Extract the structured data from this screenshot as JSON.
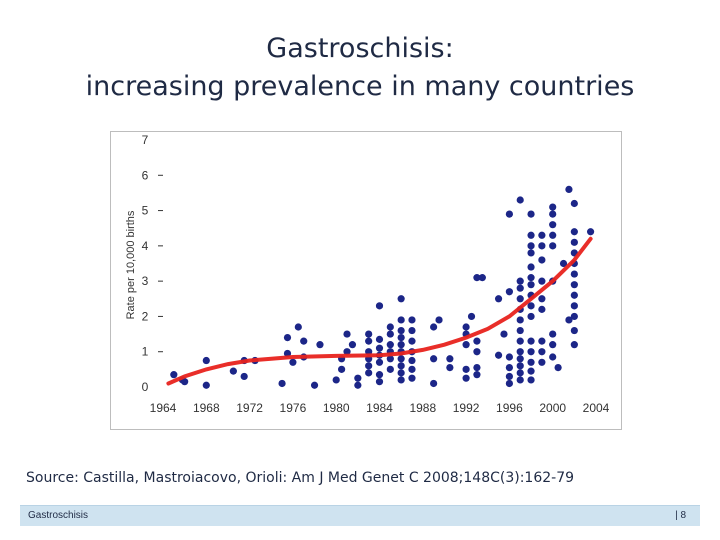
{
  "slide": {
    "title_line1": "Gastroschisis:",
    "title_line2": "increasing prevalence in many countries",
    "source": "Source: Castilla, Mastroiacovo, Orioli: Am J Med Genet C 2008;148C(3):162-79",
    "footer_left": "Gastroschisis",
    "footer_right": "| 8"
  },
  "colors": {
    "points": "#1c2688",
    "trend": "#e8231e",
    "axis_text": "#333333"
  },
  "chart_data": {
    "type": "scatter",
    "title": "",
    "xlabel": "",
    "ylabel": "Rate per 10,000 births",
    "xlim": [
      1964,
      2004
    ],
    "ylim": [
      0,
      7
    ],
    "x_ticks": [
      "1964",
      "1968",
      "1972",
      "1976",
      "1980",
      "1984",
      "1988",
      "1992",
      "1996",
      "2000",
      "2004"
    ],
    "y_ticks": [
      "0",
      "1",
      "2",
      "3",
      "4",
      "5",
      "6",
      "7"
    ],
    "grid": false,
    "points": [
      [
        1965,
        0.35
      ],
      [
        1965.8,
        0.2
      ],
      [
        1966,
        0.15
      ],
      [
        1968,
        0.05
      ],
      [
        1968,
        0.75
      ],
      [
        1970.5,
        0.45
      ],
      [
        1971.5,
        0.3
      ],
      [
        1971.5,
        0.75
      ],
      [
        1972.5,
        0.75
      ],
      [
        1975,
        0.1
      ],
      [
        1975.5,
        0.95
      ],
      [
        1975.5,
        1.4
      ],
      [
        1976,
        0.7
      ],
      [
        1976.5,
        1.7
      ],
      [
        1977,
        0.85
      ],
      [
        1977,
        1.3
      ],
      [
        1978,
        0.05
      ],
      [
        1978.5,
        1.2
      ],
      [
        1980,
        0.2
      ],
      [
        1980.5,
        0.5
      ],
      [
        1980.5,
        0.8
      ],
      [
        1981,
        1.0
      ],
      [
        1981,
        1.5
      ],
      [
        1981.5,
        1.2
      ],
      [
        1982,
        0.05
      ],
      [
        1982,
        0.25
      ],
      [
        1983,
        0.4
      ],
      [
        1983,
        0.6
      ],
      [
        1983,
        0.8
      ],
      [
        1983,
        1.0
      ],
      [
        1983,
        1.3
      ],
      [
        1983,
        1.5
      ],
      [
        1984,
        0.15
      ],
      [
        1984,
        0.35
      ],
      [
        1984,
        0.7
      ],
      [
        1984,
        0.9
      ],
      [
        1984,
        1.1
      ],
      [
        1984,
        1.35
      ],
      [
        1984,
        2.3
      ],
      [
        1985,
        0.5
      ],
      [
        1985,
        0.8
      ],
      [
        1985,
        1.0
      ],
      [
        1985,
        1.2
      ],
      [
        1985,
        1.5
      ],
      [
        1985,
        1.7
      ],
      [
        1986,
        0.2
      ],
      [
        1986,
        0.4
      ],
      [
        1986,
        0.6
      ],
      [
        1986,
        0.8
      ],
      [
        1986,
        1.0
      ],
      [
        1986,
        1.2
      ],
      [
        1986,
        1.4
      ],
      [
        1986,
        1.6
      ],
      [
        1986,
        1.9
      ],
      [
        1986,
        2.5
      ],
      [
        1987,
        0.25
      ],
      [
        1987,
        0.5
      ],
      [
        1987,
        0.75
      ],
      [
        1987,
        1.0
      ],
      [
        1987,
        1.3
      ],
      [
        1987,
        1.6
      ],
      [
        1987,
        1.9
      ],
      [
        1989,
        0.1
      ],
      [
        1989,
        0.8
      ],
      [
        1989,
        1.7
      ],
      [
        1989.5,
        1.9
      ],
      [
        1990.5,
        0.55
      ],
      [
        1990.5,
        0.8
      ],
      [
        1992,
        0.25
      ],
      [
        1992,
        0.5
      ],
      [
        1992,
        1.2
      ],
      [
        1992,
        1.5
      ],
      [
        1992,
        1.7
      ],
      [
        1992.5,
        2.0
      ],
      [
        1993,
        0.35
      ],
      [
        1993,
        0.55
      ],
      [
        1993,
        1.0
      ],
      [
        1993,
        1.3
      ],
      [
        1993,
        3.1
      ],
      [
        1993.5,
        3.1
      ],
      [
        1995,
        0.9
      ],
      [
        1995,
        2.5
      ],
      [
        1995.5,
        1.5
      ],
      [
        1996,
        0.1
      ],
      [
        1996,
        0.3
      ],
      [
        1996,
        0.55
      ],
      [
        1996,
        0.85
      ],
      [
        1996,
        2.7
      ],
      [
        1996,
        4.9
      ],
      [
        1997,
        0.2
      ],
      [
        1997,
        0.4
      ],
      [
        1997,
        0.6
      ],
      [
        1997,
        0.8
      ],
      [
        1997,
        1.0
      ],
      [
        1997,
        1.3
      ],
      [
        1997,
        1.6
      ],
      [
        1997,
        1.9
      ],
      [
        1997,
        2.2
      ],
      [
        1997,
        2.5
      ],
      [
        1997,
        2.8
      ],
      [
        1997,
        3.0
      ],
      [
        1997,
        5.3
      ],
      [
        1998,
        0.2
      ],
      [
        1998,
        0.45
      ],
      [
        1998,
        0.7
      ],
      [
        1998,
        1.0
      ],
      [
        1998,
        1.3
      ],
      [
        1998,
        2.0
      ],
      [
        1998,
        2.3
      ],
      [
        1998,
        2.6
      ],
      [
        1998,
        2.9
      ],
      [
        1998,
        3.1
      ],
      [
        1998,
        3.4
      ],
      [
        1998,
        3.8
      ],
      [
        1998,
        4.0
      ],
      [
        1998,
        4.3
      ],
      [
        1998,
        4.9
      ],
      [
        1999,
        0.7
      ],
      [
        1999,
        1.0
      ],
      [
        1999,
        1.3
      ],
      [
        1999,
        2.2
      ],
      [
        1999,
        2.5
      ],
      [
        1999,
        3.0
      ],
      [
        1999,
        3.6
      ],
      [
        1999,
        4.0
      ],
      [
        1999,
        4.3
      ],
      [
        2000,
        0.85
      ],
      [
        2000,
        1.2
      ],
      [
        2000,
        1.5
      ],
      [
        2000,
        3.0
      ],
      [
        2000,
        4.0
      ],
      [
        2000,
        4.3
      ],
      [
        2000,
        4.6
      ],
      [
        2000,
        4.9
      ],
      [
        2000,
        5.1
      ],
      [
        2000.5,
        0.55
      ],
      [
        2001,
        3.5
      ],
      [
        2001.5,
        1.9
      ],
      [
        2001.5,
        5.6
      ],
      [
        2002,
        1.2
      ],
      [
        2002,
        1.6
      ],
      [
        2002,
        2.0
      ],
      [
        2002,
        2.3
      ],
      [
        2002,
        2.6
      ],
      [
        2002,
        2.9
      ],
      [
        2002,
        3.2
      ],
      [
        2002,
        3.5
      ],
      [
        2002,
        3.8
      ],
      [
        2002,
        4.1
      ],
      [
        2002,
        4.4
      ],
      [
        2002,
        5.2
      ],
      [
        2003.5,
        4.4
      ]
    ],
    "trend_line": [
      [
        1964.5,
        0.1
      ],
      [
        1966,
        0.3
      ],
      [
        1968,
        0.5
      ],
      [
        1970,
        0.65
      ],
      [
        1972,
        0.75
      ],
      [
        1974,
        0.8
      ],
      [
        1976,
        0.85
      ],
      [
        1980,
        0.88
      ],
      [
        1984,
        0.9
      ],
      [
        1986,
        0.95
      ],
      [
        1988,
        1.05
      ],
      [
        1990,
        1.2
      ],
      [
        1992,
        1.4
      ],
      [
        1994,
        1.65
      ],
      [
        1996,
        2.0
      ],
      [
        1998,
        2.5
      ],
      [
        2000,
        3.0
      ],
      [
        2002,
        3.6
      ],
      [
        2003.5,
        4.2
      ]
    ]
  }
}
